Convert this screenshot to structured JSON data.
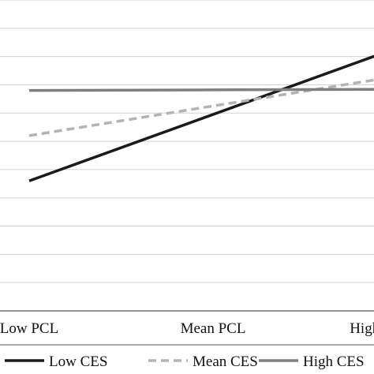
{
  "chart_data": {
    "type": "line",
    "title": "",
    "xlabel": "",
    "ylabel": "",
    "categories": [
      "Low PCL",
      "Mean PCL",
      "High PCL"
    ],
    "ylim": [
      0,
      11
    ],
    "grid": true,
    "legend_position": "bottom",
    "series": [
      {
        "name": "Low CES",
        "values": [
          4.6,
          6.95,
          9.3
        ],
        "color": "#1a1a1a",
        "style": "solid"
      },
      {
        "name": "Mean CES",
        "values": [
          6.2,
          7.25,
          8.3
        ],
        "color": "#b3b3b3",
        "style": "dashed"
      },
      {
        "name": "High CES",
        "values": [
          7.8,
          7.82,
          7.84
        ],
        "color": "#7f7f7f",
        "style": "solid"
      }
    ]
  }
}
